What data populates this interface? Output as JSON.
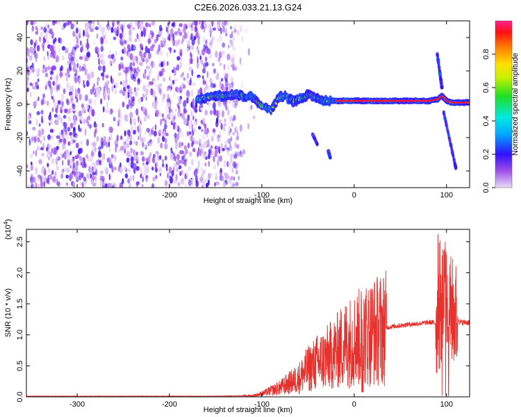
{
  "title": "C2E6.2026.033.21.13.G24",
  "chart_data": [
    {
      "type": "heatmap",
      "name": "spectrogram",
      "xlabel": "Height of straight line (km)",
      "ylabel": "Frequency (Hz)",
      "xlim": [
        -355,
        125
      ],
      "ylim": [
        -50,
        50
      ],
      "xticks": [
        -300,
        -200,
        -100,
        0,
        100
      ],
      "yticks": [
        -40,
        -20,
        0,
        20,
        40
      ],
      "grid": false,
      "noise_region": {
        "x": [
          -355,
          -125
        ],
        "y": [
          -50,
          50
        ]
      },
      "ridge": [
        [
          -170,
          3
        ],
        [
          -160,
          4
        ],
        [
          -150,
          5
        ],
        [
          -140,
          5
        ],
        [
          -130,
          6
        ],
        [
          -120,
          5
        ],
        [
          -110,
          4
        ],
        [
          -100,
          -1
        ],
        [
          -95,
          -2
        ],
        [
          -90,
          -3
        ],
        [
          -85,
          1
        ],
        [
          -80,
          5
        ],
        [
          -75,
          5
        ],
        [
          -70,
          3
        ],
        [
          -65,
          2
        ],
        [
          -60,
          3
        ],
        [
          -55,
          4
        ],
        [
          -50,
          6
        ],
        [
          -45,
          5
        ],
        [
          -40,
          4
        ],
        [
          -35,
          2
        ],
        [
          -30,
          2
        ],
        [
          -20,
          2
        ],
        [
          -10,
          2
        ],
        [
          0,
          2
        ],
        [
          10,
          2
        ],
        [
          20,
          2
        ],
        [
          40,
          2
        ],
        [
          60,
          2
        ],
        [
          80,
          2
        ],
        [
          90,
          3
        ],
        [
          95,
          5
        ],
        [
          100,
          2
        ],
        [
          105,
          1
        ],
        [
          110,
          1
        ],
        [
          120,
          1
        ],
        [
          125,
          1
        ]
      ],
      "branches": [
        {
          "x": [
            -45,
            -40
          ],
          "y": [
            -18,
            -24
          ]
        },
        {
          "x": [
            -28,
            -26
          ],
          "y": [
            -28,
            -32
          ]
        },
        {
          "x": [
            90,
            95
          ],
          "y": [
            30,
            10
          ]
        },
        {
          "x": [
            97,
            110
          ],
          "y": [
            -5,
            -38
          ]
        }
      ],
      "colorbar": {
        "label": "Normalized spectral amplitude",
        "range": [
          0,
          1
        ],
        "ticks": [
          "0.0",
          "0.2",
          "0.4",
          "0.6",
          "0.8"
        ]
      }
    },
    {
      "type": "line",
      "name": "snr",
      "xlabel": "Height of straight line (km)",
      "ylabel": "SNR (10 * v/v)",
      "y_multiplier": "(x10^4)",
      "xlim": [
        -355,
        125
      ],
      "ylim": [
        0,
        2.7
      ],
      "xticks": [
        -300,
        -200,
        -100,
        0,
        100
      ],
      "yticks": [
        "0.0",
        "0.5",
        "1.0",
        "1.5",
        "2.0",
        "2.5"
      ],
      "grid": false,
      "color": "#e8302c",
      "series": [
        {
          "x": [
            -355,
            -300,
            -250,
            -200,
            -150,
            -130,
            -110,
            -100,
            -80,
            -60,
            -50,
            -40,
            -30,
            -20,
            -10,
            0,
            10,
            20,
            30,
            40,
            50,
            60,
            70,
            80,
            85,
            90,
            95,
            98,
            100,
            105,
            110,
            115,
            120,
            125
          ],
          "y": [
            0.01,
            0.01,
            0.01,
            0.01,
            0.01,
            0.015,
            0.02,
            0.05,
            0.15,
            0.3,
            0.45,
            0.55,
            0.62,
            0.72,
            0.85,
            0.92,
            0.98,
            1.05,
            1.1,
            1.13,
            1.15,
            1.17,
            1.18,
            1.2,
            1.2,
            1.18,
            1.4,
            1.7,
            1.5,
            1.4,
            1.3,
            1.2,
            1.2,
            1.2
          ]
        }
      ]
    }
  ]
}
